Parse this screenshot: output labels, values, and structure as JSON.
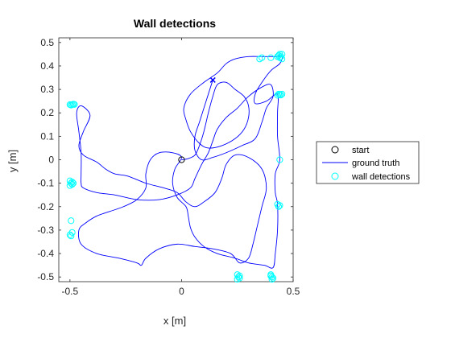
{
  "chart_data": {
    "type": "line",
    "title": "Wall detections",
    "xlabel": "x [m]",
    "ylabel": "y [m]",
    "xlim": [
      -0.55,
      0.5
    ],
    "ylim": [
      -0.52,
      0.52
    ],
    "xticks": [
      -0.5,
      0,
      0.5
    ],
    "xtick_labels": [
      "-0.5",
      "0",
      "0.5"
    ],
    "yticks": [
      -0.5,
      -0.4,
      -0.3,
      -0.2,
      -0.1,
      0,
      0.1,
      0.2,
      0.3,
      0.4,
      0.5
    ],
    "ytick_labels": [
      "-0.5",
      "-0.4",
      "-0.3",
      "-0.2",
      "-0.1",
      "0",
      "0.1",
      "0.2",
      "0.3",
      "0.4",
      "0.5"
    ],
    "grid": false,
    "legend_placement": "outside-right",
    "legend": [
      {
        "label": "start",
        "marker": "circle",
        "color": "#000000"
      },
      {
        "label": "ground truth",
        "marker": "line",
        "color": "#0000ff"
      },
      {
        "label": "wall detections",
        "marker": "circle",
        "color": "#00ffff"
      }
    ],
    "series": [
      {
        "role": "ground-truth",
        "color": "#0000ff",
        "points": [
          [
            0,
            0
          ],
          [
            0.03,
            0.005
          ],
          [
            0.06,
            0.02
          ],
          [
            0.08,
            0.06
          ],
          [
            0.1,
            0.12
          ],
          [
            0.12,
            0.2
          ],
          [
            0.14,
            0.27
          ],
          [
            0.16,
            0.32
          ],
          [
            0.2,
            0.33
          ],
          [
            0.24,
            0.3
          ],
          [
            0.28,
            0.27
          ],
          [
            0.3,
            0.23
          ],
          [
            0.3,
            0.18
          ],
          [
            0.28,
            0.13
          ],
          [
            0.24,
            0.09
          ],
          [
            0.18,
            0.06
          ],
          [
            0.12,
            0.05
          ],
          [
            0.08,
            0.07
          ],
          [
            0.04,
            0.12
          ],
          [
            0.02,
            0.17
          ],
          [
            0.01,
            0.22
          ],
          [
            0.04,
            0.28
          ],
          [
            0.1,
            0.33
          ],
          [
            0.16,
            0.37
          ],
          [
            0.2,
            0.41
          ],
          [
            0.24,
            0.43
          ],
          [
            0.3,
            0.44
          ],
          [
            0.36,
            0.44
          ],
          [
            0.42,
            0.44
          ],
          [
            0.45,
            0.44
          ],
          [
            0.44,
            0.41
          ],
          [
            0.4,
            0.38
          ],
          [
            0.36,
            0.33
          ],
          [
            0.33,
            0.28
          ],
          [
            0.33,
            0.24
          ],
          [
            0.38,
            0.25
          ],
          [
            0.43,
            0.28
          ],
          [
            0.43,
            0.2
          ],
          [
            0.43,
            0.1
          ],
          [
            0.44,
            0.0
          ],
          [
            0.42,
            -0.06
          ],
          [
            0.42,
            -0.14
          ],
          [
            0.43,
            -0.19
          ],
          [
            0.43,
            -0.3
          ],
          [
            0.42,
            -0.4
          ],
          [
            0.41,
            -0.46
          ],
          [
            0.37,
            -0.45
          ],
          [
            0.3,
            -0.44
          ],
          [
            0.24,
            -0.42
          ],
          [
            0.16,
            -0.4
          ],
          [
            0.1,
            -0.37
          ],
          [
            0.06,
            -0.33
          ],
          [
            0.04,
            -0.29
          ],
          [
            0.03,
            -0.24
          ],
          [
            0.02,
            -0.2
          ],
          [
            -0.02,
            -0.16
          ],
          [
            -0.04,
            -0.1
          ],
          [
            -0.03,
            -0.04
          ],
          [
            0.0,
            0.01
          ],
          [
            -0.04,
            0.03
          ],
          [
            -0.1,
            0.03
          ],
          [
            -0.14,
            0.0
          ],
          [
            -0.16,
            -0.06
          ],
          [
            -0.16,
            -0.12
          ],
          [
            -0.2,
            -0.17
          ],
          [
            -0.26,
            -0.2
          ],
          [
            -0.32,
            -0.22
          ],
          [
            -0.38,
            -0.24
          ],
          [
            -0.43,
            -0.27
          ],
          [
            -0.46,
            -0.3
          ],
          [
            -0.45,
            -0.36
          ],
          [
            -0.38,
            -0.4
          ],
          [
            -0.28,
            -0.42
          ],
          [
            -0.2,
            -0.44
          ],
          [
            -0.18,
            -0.45
          ],
          [
            -0.16,
            -0.42
          ],
          [
            -0.1,
            -0.38
          ],
          [
            -0.02,
            -0.36
          ],
          [
            0.06,
            -0.37
          ],
          [
            0.14,
            -0.38
          ],
          [
            0.22,
            -0.4
          ],
          [
            0.26,
            -0.44
          ],
          [
            0.3,
            -0.42
          ],
          [
            0.32,
            -0.36
          ],
          [
            0.34,
            -0.28
          ],
          [
            0.36,
            -0.2
          ],
          [
            0.38,
            -0.12
          ],
          [
            0.36,
            -0.04
          ],
          [
            0.3,
            0.01
          ],
          [
            0.24,
            0.02
          ],
          [
            0.2,
            -0.02
          ],
          [
            0.18,
            -0.08
          ],
          [
            0.15,
            -0.14
          ],
          [
            0.1,
            -0.18
          ],
          [
            0.06,
            -0.2
          ],
          [
            0.02,
            -0.18
          ],
          [
            -0.02,
            -0.14
          ],
          [
            -0.08,
            -0.12
          ],
          [
            -0.16,
            -0.1
          ],
          [
            -0.24,
            -0.07
          ],
          [
            -0.3,
            -0.06
          ],
          [
            -0.34,
            -0.04
          ],
          [
            -0.38,
            -0.01
          ],
          [
            -0.44,
            0.02
          ],
          [
            -0.46,
            0.06
          ],
          [
            -0.44,
            0.12
          ],
          [
            -0.41,
            0.19
          ],
          [
            -0.45,
            0.23
          ],
          [
            -0.47,
            0.2
          ],
          [
            -0.46,
            0.12
          ],
          [
            -0.45,
            0.03
          ],
          [
            -0.45,
            -0.06
          ],
          [
            -0.45,
            -0.1
          ],
          [
            -0.44,
            -0.12
          ],
          [
            -0.38,
            -0.14
          ],
          [
            -0.3,
            -0.15
          ],
          [
            -0.2,
            -0.17
          ],
          [
            -0.1,
            -0.17
          ],
          [
            -0.02,
            -0.15
          ],
          [
            0.04,
            -0.12
          ],
          [
            0.06,
            -0.08
          ],
          [
            0.09,
            -0.02
          ],
          [
            0.12,
            0.03
          ],
          [
            0.14,
            0.08
          ],
          [
            0.16,
            0.13
          ],
          [
            0.2,
            0.18
          ],
          [
            0.25,
            0.22
          ],
          [
            0.3,
            0.27
          ],
          [
            0.36,
            0.31
          ],
          [
            0.4,
            0.32
          ],
          [
            0.41,
            0.27
          ],
          [
            0.38,
            0.22
          ],
          [
            0.36,
            0.16
          ],
          [
            0.33,
            0.09
          ],
          [
            0.27,
            0.06
          ],
          [
            0.2,
            0.03
          ],
          [
            0.14,
            0.01
          ],
          [
            0.09,
            0.0
          ],
          [
            0.06,
            0.04
          ],
          [
            0.06,
            0.1
          ],
          [
            0.08,
            0.16
          ],
          [
            0.1,
            0.22
          ],
          [
            0.12,
            0.28
          ],
          [
            0.14,
            0.34
          ]
        ]
      }
    ],
    "start": {
      "x": 0,
      "y": 0,
      "color": "#000000"
    },
    "end_marker": {
      "x": 0.14,
      "y": 0.34,
      "marker": "x",
      "color": "#0000ff"
    },
    "wall_detections": {
      "color": "#00ffff",
      "points": [
        [
          -0.5,
          0.235
        ],
        [
          -0.49,
          0.235
        ],
        [
          -0.485,
          0.237
        ],
        [
          -0.495,
          0.233
        ],
        [
          -0.48,
          0.236
        ],
        [
          -0.5,
          -0.09
        ],
        [
          -0.495,
          -0.1
        ],
        [
          -0.49,
          -0.105
        ],
        [
          -0.5,
          -0.11
        ],
        [
          -0.49,
          -0.095
        ],
        [
          -0.485,
          -0.1
        ],
        [
          -0.495,
          -0.26
        ],
        [
          -0.49,
          -0.31
        ],
        [
          -0.5,
          -0.32
        ],
        [
          -0.495,
          -0.325
        ],
        [
          0.25,
          -0.49
        ],
        [
          0.255,
          -0.5
        ],
        [
          0.26,
          -0.505
        ],
        [
          0.25,
          -0.51
        ],
        [
          0.26,
          -0.495
        ],
        [
          0.4,
          -0.49
        ],
        [
          0.405,
          -0.5
        ],
        [
          0.41,
          -0.505
        ],
        [
          0.4,
          -0.495
        ],
        [
          0.405,
          -0.51
        ],
        [
          0.43,
          -0.19
        ],
        [
          0.435,
          -0.2
        ],
        [
          0.44,
          -0.195
        ],
        [
          0.44,
          0.0
        ],
        [
          0.43,
          0.275
        ],
        [
          0.435,
          0.28
        ],
        [
          0.44,
          0.278
        ],
        [
          0.445,
          0.276
        ],
        [
          0.45,
          0.28
        ],
        [
          0.35,
          0.43
        ],
        [
          0.36,
          0.435
        ],
        [
          0.4,
          0.435
        ],
        [
          0.43,
          0.44
        ],
        [
          0.435,
          0.445
        ],
        [
          0.44,
          0.45
        ],
        [
          0.445,
          0.44
        ],
        [
          0.45,
          0.43
        ],
        [
          0.45,
          0.45
        ],
        [
          0.44,
          0.435
        ]
      ]
    }
  }
}
